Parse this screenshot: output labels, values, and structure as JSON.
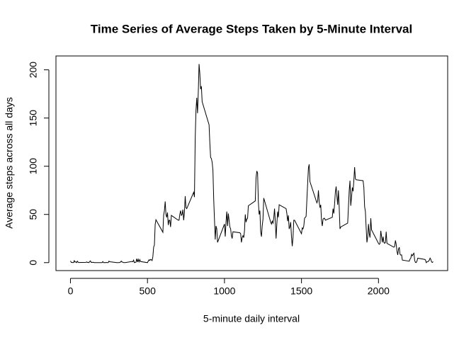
{
  "chart_data": {
    "type": "line",
    "title": "Time Series of Average Steps Taken by 5-Minute Interval",
    "x_label": "5-minute daily interval",
    "y_label": "Average steps across all days",
    "color": "#000000",
    "xlim": [
      -94.2,
      2449.2
    ],
    "ylim": [
      -8.25,
      214.4
    ],
    "xticks": [
      0,
      500,
      1000,
      1500,
      2000
    ],
    "yticks": [
      0,
      50,
      100,
      150,
      200
    ],
    "x": [
      0,
      5,
      10,
      15,
      20,
      25,
      30,
      35,
      40,
      45,
      50,
      55,
      100,
      105,
      110,
      115,
      120,
      125,
      130,
      135,
      140,
      145,
      150,
      155,
      200,
      205,
      210,
      215,
      220,
      225,
      230,
      235,
      240,
      245,
      250,
      255,
      300,
      305,
      310,
      315,
      320,
      325,
      330,
      335,
      340,
      345,
      350,
      355,
      400,
      405,
      410,
      415,
      420,
      425,
      430,
      435,
      440,
      445,
      450,
      455,
      500,
      505,
      510,
      515,
      520,
      525,
      530,
      535,
      540,
      545,
      550,
      555,
      600,
      605,
      610,
      615,
      620,
      625,
      630,
      635,
      640,
      645,
      650,
      655,
      700,
      705,
      710,
      715,
      720,
      725,
      730,
      735,
      740,
      745,
      750,
      755,
      800,
      805,
      810,
      815,
      820,
      825,
      830,
      835,
      840,
      845,
      850,
      855,
      900,
      905,
      910,
      915,
      920,
      925,
      930,
      935,
      940,
      945,
      950,
      955,
      1000,
      1005,
      1010,
      1015,
      1020,
      1025,
      1030,
      1035,
      1040,
      1045,
      1050,
      1055,
      1100,
      1105,
      1110,
      1115,
      1120,
      1125,
      1130,
      1135,
      1140,
      1145,
      1150,
      1155,
      1200,
      1205,
      1210,
      1215,
      1220,
      1225,
      1230,
      1235,
      1240,
      1245,
      1250,
      1255,
      1300,
      1305,
      1310,
      1315,
      1320,
      1325,
      1330,
      1335,
      1340,
      1345,
      1350,
      1355,
      1400,
      1405,
      1410,
      1415,
      1420,
      1425,
      1430,
      1435,
      1440,
      1445,
      1450,
      1455,
      1500,
      1505,
      1510,
      1515,
      1520,
      1525,
      1530,
      1535,
      1540,
      1545,
      1550,
      1555,
      1600,
      1605,
      1610,
      1615,
      1620,
      1625,
      1630,
      1635,
      1640,
      1645,
      1650,
      1655,
      1700,
      1705,
      1710,
      1715,
      1720,
      1725,
      1730,
      1735,
      1740,
      1745,
      1750,
      1755,
      1800,
      1805,
      1810,
      1815,
      1820,
      1825,
      1830,
      1835,
      1840,
      1845,
      1850,
      1855,
      1900,
      1905,
      1910,
      1915,
      1920,
      1925,
      1930,
      1935,
      1940,
      1945,
      1950,
      1955,
      2000,
      2005,
      2010,
      2015,
      2020,
      2025,
      2030,
      2035,
      2040,
      2045,
      2050,
      2055,
      2100,
      2105,
      2110,
      2115,
      2120,
      2125,
      2130,
      2135,
      2140,
      2145,
      2150,
      2155,
      2200,
      2205,
      2210,
      2215,
      2220,
      2225,
      2230,
      2235,
      2240,
      2245,
      2250,
      2255,
      2300,
      2305,
      2310,
      2315,
      2320,
      2325,
      2330,
      2335,
      2340,
      2345,
      2350,
      2355
    ],
    "values": [
      1.72,
      0.34,
      0.13,
      0.15,
      0.08,
      2.09,
      0.53,
      0.87,
      0,
      1.47,
      0.3,
      0.13,
      0.32,
      0.68,
      0.15,
      0.34,
      0,
      1.11,
      1.83,
      0.17,
      0.17,
      0.38,
      0.26,
      0,
      0,
      0,
      1.1,
      0,
      0,
      0.13,
      0,
      0.23,
      0,
      0,
      1.55,
      0.94,
      0,
      0,
      0,
      0,
      0.21,
      0.62,
      1.62,
      0.58,
      0.49,
      0.08,
      0,
      0,
      1.19,
      0.94,
      2.57,
      0,
      0.34,
      0.36,
      4.1,
      0.66,
      3.5,
      0.83,
      3.1,
      1.1,
      0,
      1.6,
      3,
      2.2,
      3.3,
      3,
      2.1,
      6.1,
      16,
      18.3,
      39.5,
      44.5,
      31.5,
      49.3,
      53.8,
      63.5,
      50,
      47,
      52,
      39,
      44,
      44,
      37,
      49,
      44,
      44,
      50,
      54,
      49,
      50,
      55,
      44,
      52,
      69,
      57,
      56,
      73,
      68,
      129,
      158,
      171,
      155,
      177,
      206,
      196,
      180,
      183,
      167,
      143,
      124,
      109,
      108,
      104,
      96,
      66,
      45,
      24,
      38,
      35,
      21,
      40,
      27,
      42,
      53,
      38,
      51,
      44,
      37,
      35,
      28,
      25,
      32,
      31,
      30,
      21,
      26,
      28,
      26,
      33,
      50,
      42,
      45,
      46,
      59,
      64,
      88,
      95,
      93,
      63,
      50,
      54,
      32,
      27,
      38,
      45,
      67,
      42,
      40,
      43,
      41,
      46,
      56,
      43,
      25,
      40,
      53,
      47,
      60,
      56,
      51,
      43,
      49,
      35,
      37,
      42,
      27,
      17,
      26,
      44,
      44,
      30,
      36,
      35,
      38,
      46,
      47,
      48,
      65,
      82,
      98,
      102,
      84,
      62,
      64,
      75,
      63,
      57,
      60,
      44,
      38,
      45,
      46,
      46,
      44,
      47,
      56,
      51,
      61,
      73,
      79,
      69,
      60,
      75,
      57,
      35,
      37,
      41,
      58,
      75,
      85,
      59,
      68,
      78,
      74,
      85,
      99,
      87,
      86,
      85,
      78,
      58,
      53,
      36,
      21,
      27,
      40,
      30,
      26,
      46,
      34,
      20,
      19,
      20,
      33,
      27,
      21,
      27,
      21,
      20,
      21,
      32,
      20,
      16,
      17,
      23,
      19,
      12,
      8,
      14,
      16,
      8.7,
      7.8,
      8.1,
      2.6,
      1.5,
      3.7,
      4.8,
      8.5,
      7.1,
      8.7,
      9.8,
      2.2,
      0.3,
      0.1,
      1.6,
      4.6,
      3.3,
      2.8,
      0,
      0.8,
      0.96,
      1.6,
      2.6,
      4.7,
      3.3,
      0.64,
      0.23,
      1.08
    ]
  }
}
